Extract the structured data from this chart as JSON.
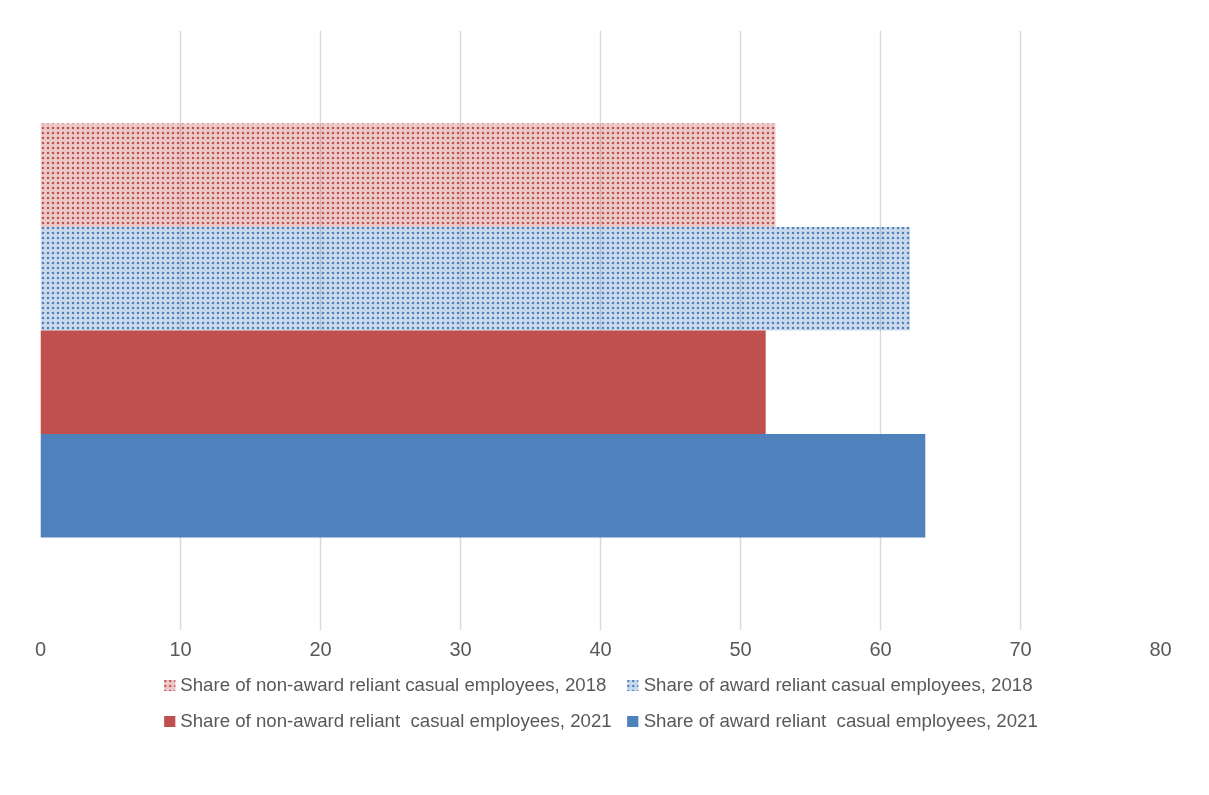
{
  "chart_data": {
    "type": "bar",
    "orientation": "horizontal",
    "categories": [
      null
    ],
    "series": [
      {
        "name": "Share of non-award reliant casual employees, 2018",
        "color": "#c0504d",
        "line_style": "dotted",
        "values": [
          52.5
        ]
      },
      {
        "name": "Share of award reliant casual employees, 2018",
        "color": "#4f81bd",
        "line_style": "dotted",
        "values": [
          62.1
        ]
      },
      {
        "name": "Share of non-award reliant  casual employees, 2021",
        "color": "#c0504d",
        "values": [
          51.8
        ]
      },
      {
        "name": "Share of award reliant  casual employees, 2021",
        "color": "#4f81bd",
        "values": [
          63.2
        ]
      }
    ],
    "xlim": [
      0,
      80
    ],
    "xticks": [
      0,
      10,
      20,
      30,
      40,
      50,
      60,
      70,
      80
    ],
    "grid": "x",
    "legend": "bottom"
  }
}
